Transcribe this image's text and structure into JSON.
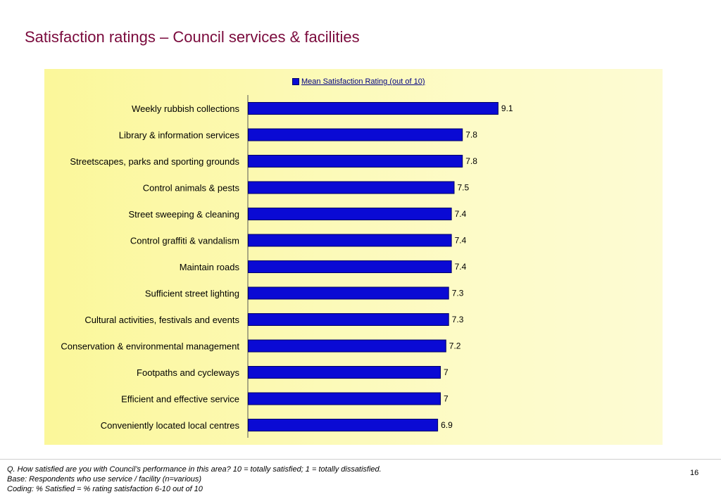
{
  "page": {
    "title": "Satisfaction ratings – Council services & facilities",
    "footnotes": [
      "Q. How satisfied are you with Council’s performance in this area?  10 = totally satisfied; 1 = totally dissatisfied.",
      "Base: Respondents who use service / facility (n=various)",
      "Coding: % Satisfied = % rating satisfaction 6-10 out of 10"
    ],
    "page_number": "16"
  },
  "colors": {
    "title": "#7a0a3c",
    "bar_fill": "#0a0ad4",
    "bar_stroke": "#000066",
    "chart_bg": "#fbf79a"
  },
  "chart_data": {
    "type": "bar",
    "orientation": "horizontal",
    "categories": [
      "Weekly rubbish collections",
      "Library & information services",
      "Streetscapes, parks and sporting grounds",
      "Control animals & pests",
      "Street sweeping & cleaning",
      "Control graffiti & vandalism",
      "Maintain roads",
      "Sufficient street lighting",
      "Cultural activities, festivals and events",
      "Conservation & environmental management",
      "Footpaths and cycleways",
      "Efficient and effective service",
      "Conveniently located local centres"
    ],
    "series": [
      {
        "name": "Mean Satisfaction Rating (out of 10)",
        "values": [
          9.1,
          7.8,
          7.8,
          7.5,
          7.4,
          7.4,
          7.4,
          7.3,
          7.3,
          7.2,
          7,
          7,
          6.9
        ],
        "labels": [
          "9.1",
          "7.8",
          "7.8",
          "7.5",
          "7.4",
          "7.4",
          "7.4",
          "7.3",
          "7.3",
          "7.2",
          "7",
          "7",
          "6.9"
        ]
      }
    ],
    "xlim": [
      0,
      10
    ],
    "legend": "top-center",
    "grid": false
  }
}
